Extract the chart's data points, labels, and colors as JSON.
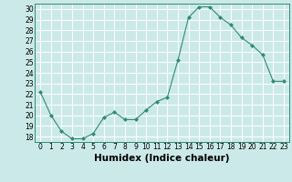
{
  "xlabel": "Humidex (Indice chaleur)",
  "ylabel": "",
  "x": [
    0,
    1,
    2,
    3,
    4,
    5,
    6,
    7,
    8,
    9,
    10,
    11,
    12,
    13,
    14,
    15,
    16,
    17,
    18,
    19,
    20,
    21,
    22,
    23
  ],
  "y": [
    22.2,
    20.0,
    18.5,
    17.8,
    17.8,
    18.3,
    19.8,
    20.3,
    19.6,
    19.6,
    20.5,
    21.3,
    21.7,
    25.2,
    29.2,
    30.2,
    30.2,
    29.2,
    28.5,
    27.3,
    26.6,
    25.7,
    23.2,
    23.2
  ],
  "line_color": "#2e8b74",
  "marker": "D",
  "marker_size": 2.0,
  "bg_color": "#cce9e9",
  "grid_color": "#ffffff",
  "ylim": [
    17.5,
    30.5
  ],
  "xlim": [
    -0.5,
    23.5
  ],
  "yticks": [
    18,
    19,
    20,
    21,
    22,
    23,
    24,
    25,
    26,
    27,
    28,
    29,
    30
  ],
  "xticks": [
    0,
    1,
    2,
    3,
    4,
    5,
    6,
    7,
    8,
    9,
    10,
    11,
    12,
    13,
    14,
    15,
    16,
    17,
    18,
    19,
    20,
    21,
    22,
    23
  ],
  "tick_label_fontsize": 5.5,
  "xlabel_fontsize": 7.5,
  "linewidth": 0.8
}
